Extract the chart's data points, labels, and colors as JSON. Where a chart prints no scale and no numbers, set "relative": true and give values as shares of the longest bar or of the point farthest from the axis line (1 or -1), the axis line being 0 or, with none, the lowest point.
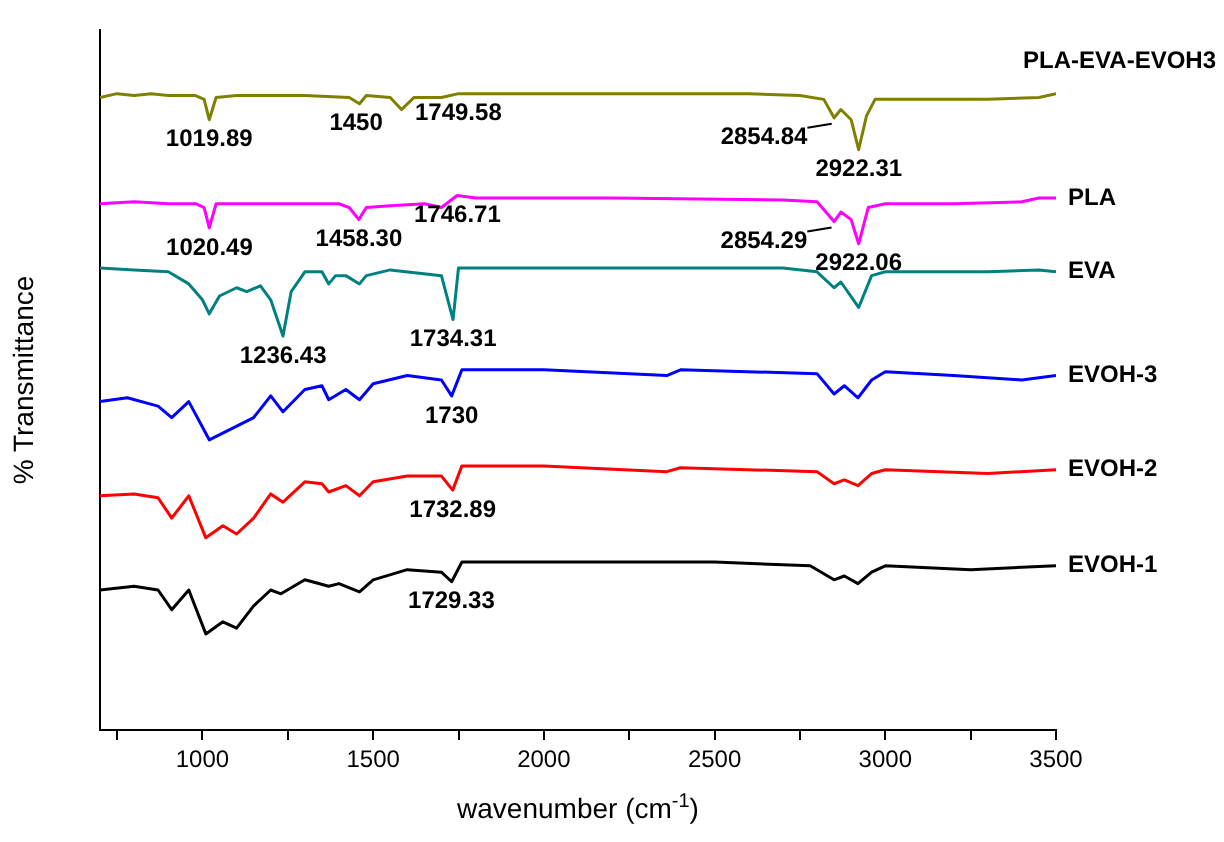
{
  "chart_data": {
    "type": "line",
    "relative": true,
    "xlabel": "wavenumber (cm$^{-1}$)",
    "ylabel": "% Transmittance",
    "xlim": [
      700,
      3500
    ],
    "xticks": [
      {
        "value": 750,
        "label": null
      },
      1000,
      {
        "value": 1250,
        "label": null
      },
      1500,
      {
        "value": 1750,
        "label": null
      },
      2000,
      {
        "value": 2250,
        "label": null
      },
      2500,
      {
        "value": 2750,
        "label": null
      },
      3000,
      {
        "value": 3250,
        "label": null
      },
      3500
    ],
    "grid": false,
    "legend": false,
    "series": [
      {
        "name": "PLA-EVA-EVOH3",
        "color": "#808000",
        "x": [
          700,
          750,
          800,
          850,
          900,
          980,
          1005,
          1020,
          1040,
          1100,
          1300,
          1430,
          1460,
          1480,
          1550,
          1583,
          1620,
          1700,
          1750,
          1800,
          2200,
          2600,
          2750,
          2820,
          2850,
          2870,
          2900,
          2922,
          2945,
          2970,
          3100,
          3300,
          3450,
          3500
        ],
        "values": [
          0.994,
          1,
          0.997,
          1,
          0.997,
          0.997,
          0.991,
          0.959,
          0.994,
          0.997,
          0.997,
          0.994,
          0.984,
          0.997,
          0.994,
          0.975,
          0.994,
          0.994,
          1,
          1,
          1,
          1,
          0.997,
          0.991,
          0.962,
          0.975,
          0.959,
          0.912,
          0.965,
          0.991,
          0.991,
          0.991,
          0.994,
          1
        ]
      },
      {
        "name": "PLA",
        "color": "#ff00ff",
        "x": [
          700,
          800,
          900,
          980,
          1005,
          1020,
          1040,
          1200,
          1400,
          1430,
          1458,
          1480,
          1550,
          1650,
          1700,
          1746,
          1800,
          2200,
          2700,
          2800,
          2850,
          2870,
          2900,
          2922,
          2950,
          3000,
          3200,
          3400,
          3450,
          3500
        ],
        "values": [
          0.827,
          0.83,
          0.827,
          0.827,
          0.821,
          0.789,
          0.827,
          0.827,
          0.827,
          0.821,
          0.802,
          0.821,
          0.824,
          0.827,
          0.821,
          0.84,
          0.836,
          0.836,
          0.833,
          0.83,
          0.799,
          0.814,
          0.802,
          0.764,
          0.821,
          0.827,
          0.827,
          0.83,
          0.836,
          0.836
        ]
      },
      {
        "name": "EVA",
        "color": "#008080",
        "x": [
          700,
          800,
          900,
          960,
          1000,
          1020,
          1050,
          1100,
          1130,
          1170,
          1200,
          1236,
          1260,
          1300,
          1350,
          1370,
          1390,
          1420,
          1460,
          1480,
          1550,
          1700,
          1734,
          1750,
          1800,
          2200,
          2700,
          2800,
          2850,
          2870,
          2922,
          2960,
          3000,
          3300,
          3450,
          3500
        ],
        "values": [
          0.726,
          0.723,
          0.72,
          0.701,
          0.676,
          0.654,
          0.682,
          0.695,
          0.689,
          0.698,
          0.676,
          0.619,
          0.689,
          0.72,
          0.72,
          0.701,
          0.714,
          0.714,
          0.701,
          0.714,
          0.723,
          0.714,
          0.645,
          0.726,
          0.726,
          0.726,
          0.726,
          0.72,
          0.695,
          0.704,
          0.664,
          0.714,
          0.72,
          0.72,
          0.723,
          0.72
        ]
      },
      {
        "name": "EVOH-3",
        "color": "#0000ff",
        "x": [
          700,
          780,
          870,
          910,
          960,
          1020,
          1080,
          1150,
          1200,
          1236,
          1300,
          1350,
          1370,
          1420,
          1460,
          1500,
          1600,
          1700,
          1730,
          1760,
          2000,
          2360,
          2400,
          2800,
          2850,
          2880,
          2920,
          2960,
          3000,
          3200,
          3400,
          3500
        ],
        "values": [
          0.516,
          0.522,
          0.509,
          0.491,
          0.516,
          0.456,
          0.472,
          0.491,
          0.525,
          0.5,
          0.535,
          0.541,
          0.519,
          0.535,
          0.519,
          0.544,
          0.557,
          0.55,
          0.525,
          0.566,
          0.566,
          0.557,
          0.566,
          0.56,
          0.528,
          0.541,
          0.522,
          0.55,
          0.563,
          0.557,
          0.55,
          0.557
        ]
      },
      {
        "name": "EVOH-2",
        "color": "#ff0000",
        "x": [
          700,
          800,
          870,
          910,
          960,
          1010,
          1060,
          1100,
          1150,
          1200,
          1236,
          1300,
          1350,
          1370,
          1420,
          1460,
          1500,
          1600,
          1700,
          1733,
          1760,
          2000,
          2360,
          2400,
          2800,
          2850,
          2880,
          2920,
          2960,
          3000,
          3300,
          3500
        ],
        "values": [
          0.368,
          0.371,
          0.365,
          0.333,
          0.368,
          0.302,
          0.321,
          0.308,
          0.333,
          0.371,
          0.358,
          0.39,
          0.387,
          0.374,
          0.384,
          0.368,
          0.39,
          0.399,
          0.399,
          0.377,
          0.415,
          0.415,
          0.406,
          0.412,
          0.406,
          0.387,
          0.393,
          0.384,
          0.403,
          0.409,
          0.403,
          0.409
        ]
      },
      {
        "name": "EVOH-1",
        "color": "#000000",
        "x": [
          700,
          800,
          870,
          910,
          960,
          1010,
          1060,
          1100,
          1150,
          1200,
          1230,
          1300,
          1370,
          1400,
          1460,
          1500,
          1600,
          1700,
          1730,
          1760,
          2000,
          2500,
          2780,
          2850,
          2880,
          2920,
          2960,
          3000,
          3250,
          3500
        ],
        "values": [
          0.22,
          0.226,
          0.22,
          0.189,
          0.22,
          0.151,
          0.17,
          0.16,
          0.195,
          0.22,
          0.214,
          0.236,
          0.226,
          0.23,
          0.217,
          0.236,
          0.252,
          0.248,
          0.233,
          0.264,
          0.264,
          0.264,
          0.258,
          0.236,
          0.242,
          0.23,
          0.248,
          0.258,
          0.252,
          0.258
        ]
      }
    ],
    "annotations": [
      {
        "text": "1019.89",
        "x": 1019.89,
        "y": 0.959
      },
      {
        "text": "1450",
        "x": 1450,
        "y": 0.984
      },
      {
        "text": "1749.58",
        "x": 1749.58,
        "y": 1
      },
      {
        "text": "2922.31",
        "x": 2922.31,
        "y": 0.912
      },
      {
        "text": "2854.84",
        "x": 2854.84,
        "y": 0.962
      },
      {
        "text": "1020.49",
        "x": 1020.49,
        "y": 0.789
      },
      {
        "text": "1458.30",
        "x": 1458.3,
        "y": 0.802
      },
      {
        "text": "1746.71",
        "x": 1746.71,
        "y": 0.84
      },
      {
        "text": "2922.06",
        "x": 2922.06,
        "y": 0.764
      },
      {
        "text": "2854.29",
        "x": 2854.29,
        "y": 0.799
      },
      {
        "text": "1236.43",
        "x": 1236.43,
        "y": 0.619
      },
      {
        "text": "1734.31",
        "x": 1734.31,
        "y": 0.645
      },
      {
        "text": "1730",
        "x": 1730,
        "y": 0.525
      },
      {
        "text": "1732.89",
        "x": 1732.89,
        "y": 0.377
      },
      {
        "text": "1729.33",
        "x": 1729.33,
        "y": 0.233
      }
    ]
  }
}
